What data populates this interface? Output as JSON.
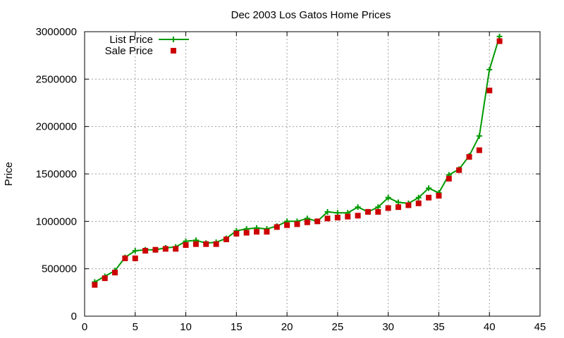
{
  "chart_data": {
    "type": "line",
    "title": "Dec 2003 Los Gatos Home Prices",
    "xlabel": "",
    "ylabel": "Price",
    "xlim": [
      0,
      45
    ],
    "ylim": [
      0,
      3000000
    ],
    "xticks": [
      "0",
      "5",
      "10",
      "15",
      "20",
      "25",
      "30",
      "35",
      "40",
      "45"
    ],
    "yticks": [
      "0",
      "500000",
      "1000000",
      "1500000",
      "2000000",
      "2500000",
      "3000000"
    ],
    "grid": true,
    "legend_position": "top-left",
    "series": [
      {
        "name": "List Price",
        "style": "linespoints",
        "marker": "plus",
        "color": "#009900",
        "x": [
          1,
          2,
          3,
          4,
          5,
          6,
          7,
          8,
          9,
          10,
          11,
          12,
          13,
          14,
          15,
          16,
          17,
          18,
          19,
          20,
          21,
          22,
          23,
          24,
          25,
          26,
          27,
          28,
          29,
          30,
          31,
          32,
          33,
          34,
          35,
          36,
          37,
          38,
          39,
          40,
          41
        ],
        "y": [
          360000,
          420000,
          480000,
          620000,
          690000,
          700000,
          700000,
          720000,
          730000,
          790000,
          800000,
          770000,
          780000,
          820000,
          900000,
          920000,
          930000,
          920000,
          950000,
          1000000,
          1000000,
          1030000,
          1000000,
          1100000,
          1090000,
          1090000,
          1150000,
          1100000,
          1150000,
          1250000,
          1200000,
          1190000,
          1250000,
          1350000,
          1300000,
          1490000,
          1550000,
          1690000,
          1900000,
          2600000,
          2950000
        ]
      },
      {
        "name": "Sale Price",
        "style": "points",
        "marker": "square",
        "color": "#cc0000",
        "x": [
          1,
          2,
          3,
          4,
          5,
          6,
          7,
          8,
          9,
          10,
          11,
          12,
          13,
          14,
          15,
          16,
          17,
          18,
          19,
          20,
          21,
          22,
          23,
          24,
          25,
          26,
          27,
          28,
          29,
          30,
          31,
          32,
          33,
          34,
          35,
          36,
          37,
          38,
          39,
          40,
          41
        ],
        "y": [
          330000,
          400000,
          460000,
          610000,
          610000,
          690000,
          700000,
          710000,
          710000,
          750000,
          760000,
          760000,
          760000,
          810000,
          870000,
          880000,
          890000,
          890000,
          940000,
          960000,
          970000,
          990000,
          1000000,
          1030000,
          1040000,
          1050000,
          1060000,
          1100000,
          1100000,
          1140000,
          1150000,
          1170000,
          1190000,
          1250000,
          1270000,
          1450000,
          1540000,
          1680000,
          1750000,
          2380000,
          2900000
        ]
      }
    ]
  }
}
